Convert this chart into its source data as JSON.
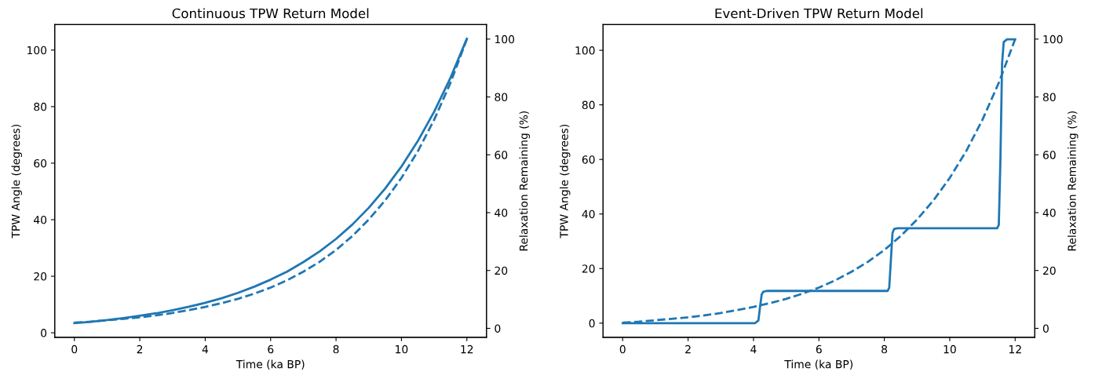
{
  "chart_data": [
    {
      "type": "line",
      "title": "Continuous TPW Return Model",
      "xlabel": "Time (ka BP)",
      "ylabel": "TPW Angle (degrees)",
      "y2label": "Relaxation Remaining (%)",
      "xlim": [
        -0.6,
        12.6
      ],
      "xticks": [
        0,
        2,
        4,
        6,
        8,
        10,
        12
      ],
      "ylim": [
        -1.6,
        109
      ],
      "yticks": [
        0,
        20,
        40,
        60,
        80,
        100
      ],
      "y2lim": [
        -3.1,
        105
      ],
      "y2ticks": [
        0,
        20,
        40,
        60,
        80,
        100
      ],
      "marker": "none",
      "series": [
        {
          "color": "#1f77b4",
          "line_style": "solid",
          "x": [
            0,
            0.5,
            1,
            1.5,
            2,
            2.5,
            3,
            3.5,
            4,
            4.5,
            5,
            5.5,
            6,
            6.5,
            7,
            7.5,
            8,
            8.5,
            9,
            9.5,
            10,
            10.5,
            11,
            11.5,
            12
          ],
          "values": [
            3.4,
            3.9,
            4.5,
            5.2,
            6.0,
            6.9,
            8.0,
            9.2,
            10.6,
            12.2,
            14.1,
            16.3,
            18.8,
            21.6,
            25.0,
            28.8,
            33.2,
            38.3,
            44.2,
            51.0,
            58.8,
            67.8,
            78.2,
            90.2,
            104
          ]
        },
        {
          "color": "#1f77b4",
          "line_style": "dashed",
          "axis": "y2",
          "x": [
            0,
            0.5,
            1,
            1.5,
            2,
            2.5,
            3,
            3.5,
            4,
            4.5,
            5,
            5.5,
            6,
            6.5,
            7,
            7.5,
            8,
            8.5,
            9,
            9.5,
            10,
            10.5,
            11,
            11.5,
            12
          ],
          "values": [
            2.0,
            2.3,
            2.8,
            3.3,
            3.8,
            4.5,
            5.3,
            6.3,
            7.4,
            8.7,
            10.2,
            12.0,
            14.1,
            16.6,
            19.6,
            23.0,
            27.1,
            31.9,
            37.6,
            44.2,
            52.0,
            61.2,
            72.1,
            84.9,
            100
          ]
        }
      ]
    },
    {
      "type": "line",
      "title": "Event-Driven TPW Return Model",
      "xlabel": "Time (ka BP)",
      "ylabel": "TPW Angle (degrees)",
      "y2label": "Relaxation Remaining (%)",
      "xlim": [
        -0.6,
        12.6
      ],
      "xticks": [
        0,
        2,
        4,
        6,
        8,
        10,
        12
      ],
      "ylim": [
        -5.2,
        109.4
      ],
      "yticks": [
        0,
        20,
        40,
        60,
        80,
        100
      ],
      "y2lim": [
        -3.1,
        105
      ],
      "y2ticks": [
        0,
        20,
        40,
        60,
        80,
        100
      ],
      "marker": "none",
      "series": [
        {
          "color": "#1f77b4",
          "line_style": "solid",
          "x": [
            0,
            4.05,
            4.15,
            4.2,
            4.25,
            4.3,
            4.4,
            8.1,
            8.15,
            8.2,
            8.25,
            8.3,
            8.4,
            11.45,
            11.5,
            11.55,
            11.6,
            11.65,
            11.75,
            12
          ],
          "values": [
            0,
            0,
            1,
            5.9,
            10.5,
            11.5,
            11.8,
            11.8,
            13,
            23,
            33,
            34.5,
            34.8,
            34.8,
            36,
            60,
            95,
            103,
            104,
            104
          ]
        },
        {
          "color": "#1f77b4",
          "line_style": "dashed",
          "axis": "y2",
          "x": [
            0,
            0.5,
            1,
            1.5,
            2,
            2.5,
            3,
            3.5,
            4,
            4.5,
            5,
            5.5,
            6,
            6.5,
            7,
            7.5,
            8,
            8.5,
            9,
            9.5,
            10,
            10.5,
            11,
            11.5,
            12
          ],
          "values": [
            2.0,
            2.3,
            2.8,
            3.3,
            3.8,
            4.5,
            5.3,
            6.3,
            7.4,
            8.7,
            10.2,
            12.0,
            14.1,
            16.6,
            19.6,
            23.0,
            27.1,
            31.9,
            37.6,
            44.2,
            52.0,
            61.2,
            72.1,
            84.9,
            100
          ]
        }
      ]
    }
  ]
}
